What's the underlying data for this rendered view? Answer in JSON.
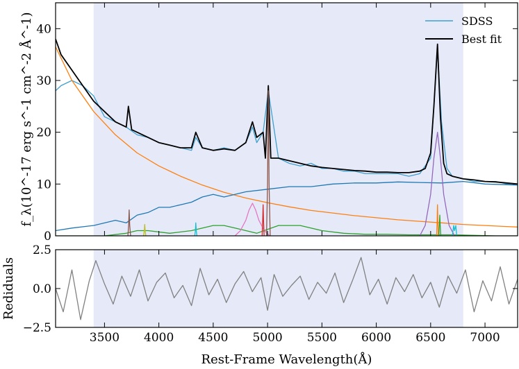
{
  "chart_data": [
    {
      "type": "line",
      "panel": "spectrum",
      "ylabel": "f_λ(10^-17 erg s^-1 cm^-2 Å^-1)",
      "xlim": [
        3050,
        7300
      ],
      "ylim": [
        0,
        45
      ],
      "xticks": [
        3500,
        4000,
        4500,
        5000,
        5500,
        6000,
        6500,
        7000
      ],
      "yticks": [
        0,
        10,
        20,
        30,
        40
      ],
      "shaded_region": [
        3400,
        6800
      ],
      "legend": {
        "position": "top-right",
        "entries": [
          {
            "label": "SDSS",
            "color": "#3f9fce"
          },
          {
            "label": "Best fit",
            "color": "#000000"
          }
        ]
      },
      "series": [
        {
          "name": "SDSS",
          "color": "#3f9fce",
          "x": [
            3050,
            3100,
            3200,
            3300,
            3400,
            3500,
            3600,
            3700,
            3800,
            3900,
            4000,
            4100,
            4200,
            4300,
            4340,
            4400,
            4500,
            4600,
            4700,
            4800,
            4861,
            4900,
            4959,
            5007,
            5100,
            5200,
            5300,
            5400,
            5500,
            5600,
            5700,
            5800,
            5900,
            6000,
            6100,
            6200,
            6300,
            6400,
            6500,
            6563,
            6600,
            6650,
            6700,
            6800,
            6900,
            7000,
            7100,
            7200,
            7300
          ],
          "y": [
            28,
            29,
            30,
            29,
            27,
            23,
            22,
            21,
            19.5,
            19,
            18,
            17.5,
            17,
            16.5,
            19,
            17,
            16.5,
            17,
            16.5,
            18,
            21,
            18,
            20,
            28,
            15,
            14,
            13.5,
            14,
            13,
            13,
            12.5,
            12.5,
            12,
            12,
            12,
            12,
            11.5,
            12,
            15,
            36,
            22,
            13,
            11.5,
            11,
            10.5,
            10.5,
            10.5,
            10,
            10
          ]
        },
        {
          "name": "Best fit",
          "color": "#000000",
          "x": [
            3050,
            3100,
            3200,
            3300,
            3400,
            3500,
            3600,
            3700,
            3720,
            3750,
            3800,
            3900,
            4000,
            4100,
            4200,
            4300,
            4340,
            4400,
            4500,
            4600,
            4700,
            4800,
            4861,
            4900,
            4959,
            4980,
            5007,
            5030,
            5100,
            5200,
            5300,
            5400,
            5500,
            5600,
            5700,
            5800,
            5900,
            6000,
            6100,
            6200,
            6300,
            6400,
            6450,
            6500,
            6530,
            6563,
            6590,
            6620,
            6650,
            6700,
            6800,
            6900,
            7000,
            7100,
            7200,
            7300
          ],
          "y": [
            38,
            35,
            32,
            29,
            26,
            24,
            22,
            21,
            25,
            20.5,
            20,
            19,
            18,
            17.5,
            17,
            17,
            20,
            17,
            16.5,
            16.8,
            16.5,
            18,
            22,
            19,
            20,
            15,
            29,
            15,
            15,
            14.5,
            14,
            13.5,
            13.2,
            13,
            12.8,
            12.6,
            12.5,
            12.3,
            12.3,
            12.2,
            12.2,
            12.5,
            13,
            16,
            25,
            37,
            23,
            14,
            12,
            11.5,
            11,
            10.8,
            10.5,
            10.4,
            10.2,
            10
          ]
        },
        {
          "name": "power-law continuum",
          "color": "#ff7f0e",
          "x": [
            3050,
            3200,
            3400,
            3600,
            3800,
            4000,
            4200,
            4400,
            4600,
            4800,
            5000,
            5200,
            5400,
            5600,
            5800,
            6000,
            6200,
            6400,
            6600,
            6800,
            7000,
            7200,
            7300
          ],
          "y": [
            36.5,
            30,
            24,
            19.5,
            16,
            13.5,
            11.5,
            9.8,
            8.4,
            7.3,
            6.4,
            5.6,
            4.9,
            4.4,
            3.9,
            3.5,
            3.1,
            2.8,
            2.5,
            2.2,
            2.0,
            1.8,
            1.7
          ]
        },
        {
          "name": "host galaxy",
          "color": "#1f77b4",
          "x": [
            3050,
            3200,
            3400,
            3600,
            3700,
            3800,
            3900,
            4000,
            4100,
            4200,
            4300,
            4400,
            4500,
            4600,
            4800,
            5000,
            5200,
            5400,
            5600,
            5800,
            6000,
            6200,
            6400,
            6600,
            6800,
            7000,
            7300
          ],
          "y": [
            1,
            1.5,
            2,
            3,
            2.5,
            4,
            4.5,
            5.5,
            5.5,
            6,
            6.5,
            7.5,
            8,
            7.5,
            8.5,
            9,
            9.5,
            9.5,
            10,
            10.2,
            10.2,
            10.4,
            10.3,
            10.2,
            10.5,
            10,
            9.8
          ]
        },
        {
          "name": "Fe II",
          "color": "#2ca02c",
          "x": [
            3050,
            3300,
            3500,
            3700,
            3800,
            3900,
            4100,
            4300,
            4500,
            4600,
            4700,
            4900,
            5100,
            5300,
            5500,
            5700,
            5900,
            6100,
            6300,
            6500,
            6700,
            6900,
            7100,
            7300
          ],
          "y": [
            0,
            0,
            0,
            0.5,
            1,
            1,
            0.5,
            1,
            2,
            2,
            1.5,
            0.5,
            2,
            2,
            1,
            0.5,
            0.3,
            0.3,
            0.2,
            0.2,
            0.2,
            0.1,
            0,
            0
          ]
        },
        {
          "name": "broad Hβ",
          "color": "#e377c2",
          "x": [
            4700,
            4750,
            4800,
            4830,
            4861,
            4890,
            4920,
            4970,
            5020
          ],
          "y": [
            0,
            1,
            3,
            5,
            6.3,
            5,
            3,
            1,
            0
          ]
        },
        {
          "name": "broad Hα",
          "color": "#9467bd",
          "x": [
            6400,
            6450,
            6500,
            6530,
            6563,
            6590,
            6620,
            6670,
            6720
          ],
          "y": [
            0,
            2,
            8,
            15,
            20,
            15,
            8,
            2,
            0
          ]
        },
        {
          "name": "[O III] 5007",
          "color": "#8c564b",
          "x": [
            4990,
            5000,
            5007,
            5014,
            5024
          ],
          "y": [
            0,
            10,
            28,
            10,
            0
          ]
        },
        {
          "name": "[O III] 4959",
          "color": "#d62728",
          "x": [
            4950,
            4955,
            4959,
            4963,
            4968
          ],
          "y": [
            0,
            3,
            6,
            3,
            0
          ]
        },
        {
          "name": "[O II] 3727",
          "color": "#8c564b",
          "x": [
            3715,
            3722,
            3727,
            3732,
            3740
          ],
          "y": [
            0,
            2,
            5,
            2,
            0
          ]
        },
        {
          "name": "Hδ",
          "color": "#bcbd22",
          "x": [
            3860,
            3866,
            3870,
            3874,
            3880
          ],
          "y": [
            0,
            1,
            2.2,
            1,
            0
          ]
        },
        {
          "name": "Hγ",
          "color": "#17becf",
          "x": [
            4330,
            4336,
            4340,
            4344,
            4350
          ],
          "y": [
            0,
            1,
            2.5,
            1,
            0
          ]
        },
        {
          "name": "narrow Hα",
          "color": "#ff7f0e",
          "x": [
            6555,
            6560,
            6563,
            6566,
            6571
          ],
          "y": [
            0,
            3,
            6,
            3,
            0
          ]
        },
        {
          "name": "[N II] 6583",
          "color": "#2ca02c",
          "x": [
            6575,
            6580,
            6584,
            6588,
            6593
          ],
          "y": [
            0,
            2,
            4,
            2,
            0
          ]
        },
        {
          "name": "[S II]",
          "color": "#17becf",
          "x": [
            6700,
            6712,
            6720,
            6731,
            6740
          ],
          "y": [
            0,
            2,
            1,
            2,
            0
          ]
        }
      ]
    },
    {
      "type": "line",
      "panel": "residuals",
      "xlabel": "Rest-Frame Wavelength(Å)",
      "ylabel": "Rediduals",
      "xlim": [
        3050,
        7300
      ],
      "ylim": [
        -2.5,
        2.5
      ],
      "xticks": [
        3500,
        4000,
        4500,
        5000,
        5500,
        6000,
        6500,
        7000
      ],
      "yticks": [
        -2.5,
        0.0,
        2.5
      ],
      "shaded_region": [
        3400,
        6800
      ],
      "series": [
        {
          "name": "residuals",
          "color": "#808080",
          "x": [
            3050,
            3120,
            3200,
            3280,
            3360,
            3420,
            3500,
            3580,
            3660,
            3740,
            3820,
            3900,
            3980,
            4060,
            4140,
            4220,
            4300,
            4380,
            4460,
            4540,
            4620,
            4700,
            4780,
            4860,
            4940,
            5000,
            5060,
            5140,
            5220,
            5300,
            5380,
            5460,
            5540,
            5620,
            5700,
            5780,
            5860,
            5940,
            6020,
            6100,
            6180,
            6260,
            6340,
            6420,
            6500,
            6580,
            6660,
            6740,
            6820,
            6900,
            6980,
            7060,
            7140,
            7220,
            7300
          ],
          "y": [
            0,
            -1.5,
            1.2,
            -2,
            0.5,
            1.8,
            0.3,
            -1,
            0.8,
            -0.5,
            1.2,
            -0.8,
            0.4,
            1.0,
            -0.6,
            0.2,
            -1.1,
            1.3,
            -0.4,
            0.6,
            -0.9,
            0.3,
            1.1,
            -0.2,
            0.7,
            -1.4,
            0.9,
            -0.5,
            0.2,
            0.8,
            -0.7,
            0.4,
            -0.3,
            1.0,
            -0.9,
            0.5,
            2.0,
            -0.4,
            0.6,
            -1.0,
            0.7,
            -0.2,
            0.9,
            -0.6,
            0.4,
            -1.2,
            0.8,
            -0.3,
            1.2,
            -1.5,
            0.5,
            -0.8,
            1.4,
            -1.0,
            0.6
          ]
        }
      ]
    }
  ]
}
